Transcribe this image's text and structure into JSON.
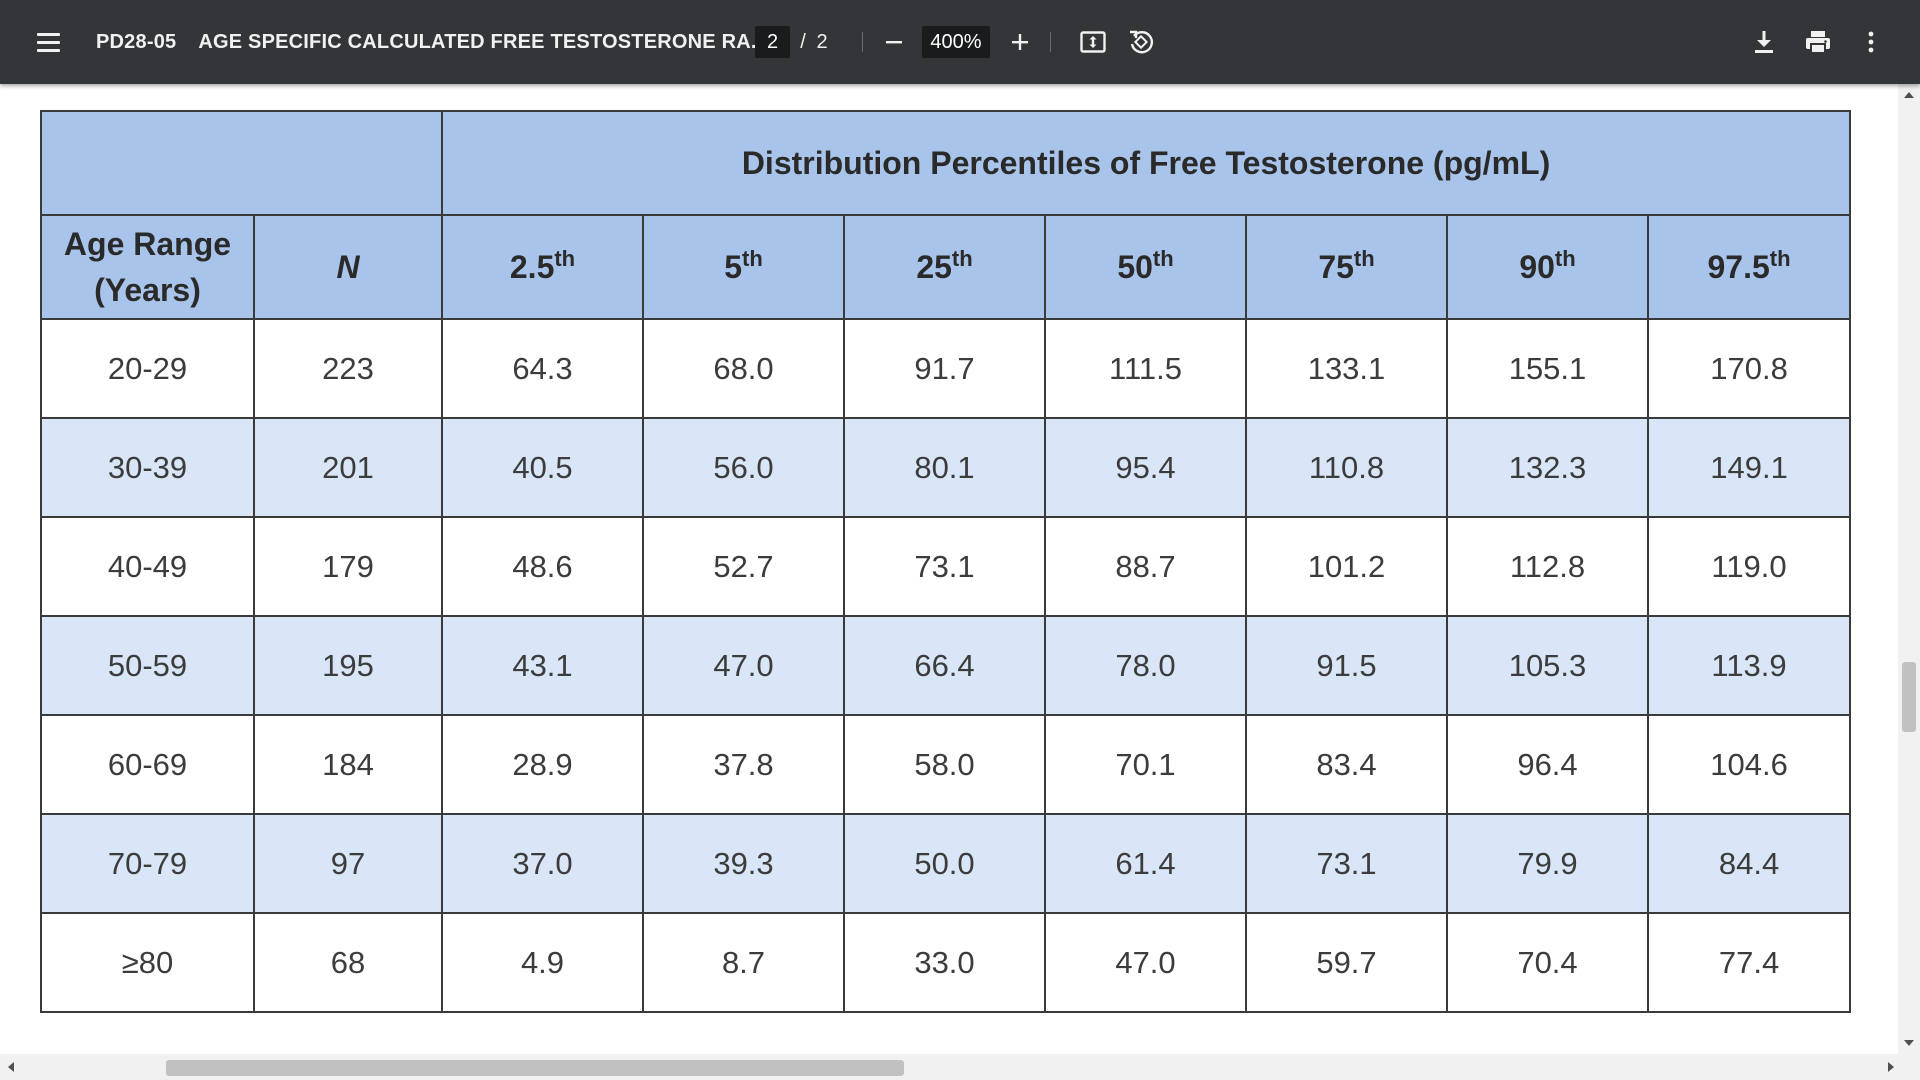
{
  "toolbar": {
    "doc_id": "PD28-05",
    "doc_title": "AGE SPECIFIC CALCULATED FREE TESTOSTERONE RA...",
    "current_page": "2",
    "page_separator": "/",
    "total_pages": "2",
    "zoom": "400%",
    "icons": {
      "menu": "hamburger-menu-icon",
      "zoom_out": "minus-icon",
      "zoom_in": "plus-icon",
      "fit": "fit-to-page-icon",
      "rotate": "rotate-counterclockwise-icon",
      "download": "download-icon",
      "print": "print-icon",
      "more": "more-vertical-icon"
    }
  },
  "table": {
    "group_header": "Distribution Percentiles of Free Testosterone (pg/mL)",
    "headers": [
      {
        "main": "Age Range",
        "second_line": "(Years)"
      },
      {
        "main": "N"
      },
      {
        "main": "2.5",
        "sup": "th"
      },
      {
        "main": "5",
        "sup": "th"
      },
      {
        "main": "25",
        "sup": "th"
      },
      {
        "main": "50",
        "sup": "th"
      },
      {
        "main": "75",
        "sup": "th"
      },
      {
        "main": "90",
        "sup": "th"
      },
      {
        "main": "97.5",
        "sup": "th"
      }
    ],
    "rows": [
      [
        "20-29",
        "223",
        "64.3",
        "68.0",
        "91.7",
        "111.5",
        "133.1",
        "155.1",
        "170.8"
      ],
      [
        "30-39",
        "201",
        "40.5",
        "56.0",
        "80.1",
        "95.4",
        "110.8",
        "132.3",
        "149.1"
      ],
      [
        "40-49",
        "179",
        "48.6",
        "52.7",
        "73.1",
        "88.7",
        "101.2",
        "112.8",
        "119.0"
      ],
      [
        "50-59",
        "195",
        "43.1",
        "47.0",
        "66.4",
        "78.0",
        "91.5",
        "105.3",
        "113.9"
      ],
      [
        "60-69",
        "184",
        "28.9",
        "37.8",
        "58.0",
        "70.1",
        "83.4",
        "96.4",
        "104.6"
      ],
      [
        "70-79",
        "97",
        "37.0",
        "39.3",
        "50.0",
        "61.4",
        "73.1",
        "79.9",
        "84.4"
      ],
      [
        "≥80",
        "68",
        "4.9",
        "8.7",
        "33.0",
        "47.0",
        "59.7",
        "70.4",
        "77.4"
      ]
    ]
  },
  "colors": {
    "toolbar_bg": "#323639",
    "header_bg": "#a9c4ea",
    "alt_row_bg": "#d9e6f7",
    "border": "#3a3a3a"
  }
}
